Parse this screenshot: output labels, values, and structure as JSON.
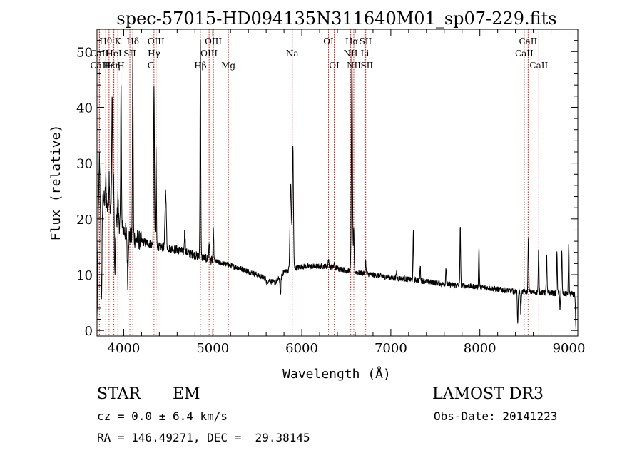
{
  "colors": {
    "spectrum": "#000000",
    "line_marker": "#cc2a1a",
    "axes": "#000000"
  },
  "chart_data": {
    "type": "line",
    "title": "spec-57015-HD094135N311640M01_sp07-229.fits",
    "xlabel": "Wavelength (Å)",
    "ylabel": "Flux (relative)",
    "xlim": [
      3700,
      9100
    ],
    "ylim": [
      -1,
      54
    ],
    "xticks": [
      4000,
      5000,
      6000,
      7000,
      8000,
      9000
    ],
    "yticks": [
      0,
      10,
      20,
      30,
      40,
      50
    ],
    "grid": false,
    "legend": "none",
    "continuum": [
      [
        3700,
        2
      ],
      [
        3715,
        20
      ],
      [
        3760,
        24
      ],
      [
        3850,
        21
      ],
      [
        3950,
        19
      ],
      [
        4050,
        17
      ],
      [
        4200,
        16
      ],
      [
        4400,
        15
      ],
      [
        4600,
        14.5
      ],
      [
        4800,
        13.5
      ],
      [
        5000,
        12.5
      ],
      [
        5300,
        11.2
      ],
      [
        5500,
        10
      ],
      [
        5700,
        8.5
      ],
      [
        5800,
        10.5
      ],
      [
        6000,
        11.5
      ],
      [
        6300,
        11.5
      ],
      [
        6500,
        10.8
      ],
      [
        6700,
        10.2
      ],
      [
        7000,
        9.5
      ],
      [
        7300,
        9
      ],
      [
        7600,
        8.3
      ],
      [
        8000,
        7.8
      ],
      [
        8400,
        7
      ],
      [
        8700,
        6.8
      ],
      [
        9000,
        6.5
      ]
    ],
    "emission_features": [
      [
        3727,
        31,
        5
      ],
      [
        3799,
        27,
        5
      ],
      [
        3837,
        28,
        5
      ],
      [
        3870,
        42,
        5
      ],
      [
        3889,
        30,
        5
      ],
      [
        3935,
        24,
        5
      ],
      [
        3970,
        46,
        4
      ],
      [
        4102,
        50,
        4
      ],
      [
        4340,
        43,
        5
      ],
      [
        4363,
        33,
        4
      ],
      [
        4471,
        25,
        7
      ],
      [
        4686,
        18,
        5
      ],
      [
        4861,
        52,
        4
      ],
      [
        4959,
        16,
        4
      ],
      [
        5007,
        18,
        4
      ],
      [
        5876,
        26,
        8
      ],
      [
        5900,
        33,
        6
      ],
      [
        6300,
        13,
        4
      ],
      [
        6364,
        12,
        4
      ],
      [
        6563,
        50,
        6
      ],
      [
        6584,
        18,
        4
      ],
      [
        6717,
        12.5,
        4
      ],
      [
        7065,
        10.5,
        4
      ],
      [
        7253,
        17.5,
        4
      ],
      [
        7330,
        11.5,
        4
      ],
      [
        7620,
        11.5,
        4
      ],
      [
        7780,
        18.5,
        4
      ],
      [
        7990,
        15,
        4
      ],
      [
        8545,
        17,
        4
      ],
      [
        8660,
        14.5,
        4
      ],
      [
        8750,
        13.5,
        4
      ],
      [
        8866,
        14,
        4
      ],
      [
        8920,
        14.5,
        4
      ],
      [
        8998,
        15.5,
        4
      ]
    ],
    "absorption_features": [
      [
        3750,
        6,
        6
      ],
      [
        3900,
        10,
        6
      ],
      [
        4045,
        9,
        5
      ],
      [
        5610,
        8,
        5
      ],
      [
        5760,
        6.3,
        5
      ],
      [
        8425,
        0.8,
        4
      ],
      [
        8460,
        3,
        4
      ],
      [
        8900,
        4,
        4
      ],
      [
        9080,
        0,
        6
      ]
    ],
    "marked_lines": [
      {
        "label": "Hθ",
        "wavelength": 3798,
        "row": 0
      },
      {
        "label": "CaII",
        "wavelength": 3727,
        "row": 1
      },
      {
        "label": "CaII",
        "wavelength": 3727,
        "row": 2
      },
      {
        "label": "Hε",
        "wavelength": 3835,
        "row": 2
      },
      {
        "label": "Hη",
        "wavelength": 3889,
        "row": 2
      },
      {
        "label": "K",
        "wavelength": 3934,
        "row": 0
      },
      {
        "label": "HeI",
        "wavelength": 3889,
        "row": 1
      },
      {
        "label": "SII",
        "wavelength": 4069,
        "row": 1
      },
      {
        "label": "H",
        "wavelength": 3969,
        "row": 2
      },
      {
        "label": "Hδ",
        "wavelength": 4102,
        "row": 0
      },
      {
        "label": "OIII",
        "wavelength": 4363,
        "row": 0
      },
      {
        "label": "Hγ",
        "wavelength": 4340,
        "row": 1
      },
      {
        "label": "G",
        "wavelength": 4305,
        "row": 2
      },
      {
        "label": "OIII",
        "wavelength": 5007,
        "row": 0
      },
      {
        "label": "OIII",
        "wavelength": 4959,
        "row": 1
      },
      {
        "label": "Hβ",
        "wavelength": 4861,
        "row": 2
      },
      {
        "label": "Mg",
        "wavelength": 5175,
        "row": 2
      },
      {
        "label": "Na",
        "wavelength": 5893,
        "row": 1
      },
      {
        "label": "OI",
        "wavelength": 6300,
        "row": 0
      },
      {
        "label": "OI",
        "wavelength": 6364,
        "row": 2
      },
      {
        "label": "Hα",
        "wavelength": 6563,
        "row": 0
      },
      {
        "label": "SII",
        "wavelength": 6716,
        "row": 0
      },
      {
        "label": "NII",
        "wavelength": 6548,
        "row": 1
      },
      {
        "label": "Li",
        "wavelength": 6708,
        "row": 1
      },
      {
        "label": "NII",
        "wavelength": 6584,
        "row": 2
      },
      {
        "label": "SII",
        "wavelength": 6731,
        "row": 2
      },
      {
        "label": "CaII",
        "wavelength": 8542,
        "row": 0
      },
      {
        "label": "CaII",
        "wavelength": 8498,
        "row": 1
      },
      {
        "label": "CaII",
        "wavelength": 8662,
        "row": 2
      }
    ]
  },
  "footer": {
    "class_label": "STAR",
    "subclass_label": "EM",
    "survey_label": "LAMOST DR3",
    "cz_text": "cz = 0.0 ± 6.4 km/s",
    "obs_date_text": "Obs-Date: 20141223",
    "coords_text": "RA = 146.49271, DEC =  29.38145"
  }
}
